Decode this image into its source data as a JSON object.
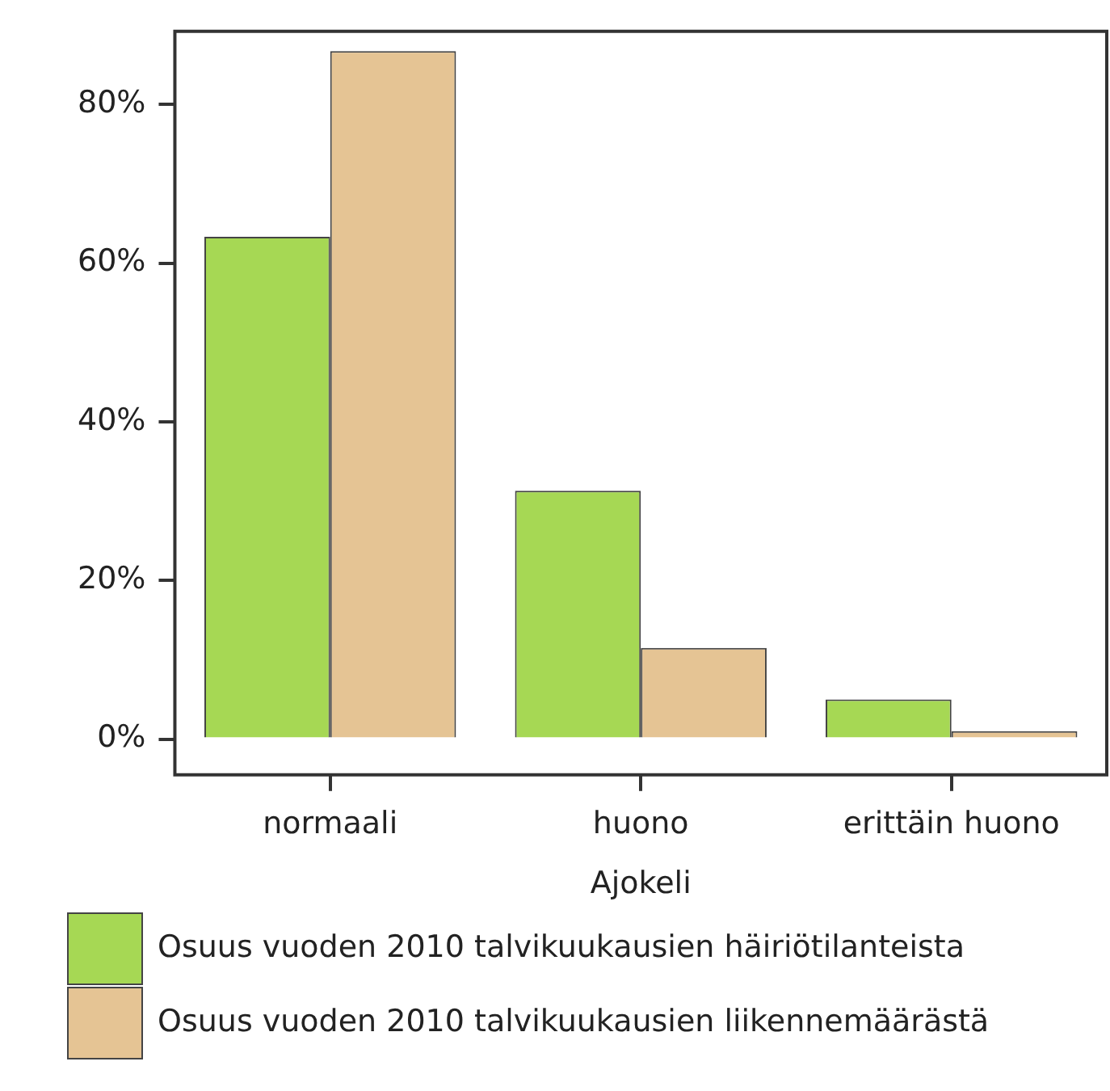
{
  "chart_data": {
    "type": "bar",
    "xlabel": "Ajokeli",
    "categories": [
      "normaali",
      "huono",
      "erittäin huono"
    ],
    "series": [
      {
        "name": "Osuus vuoden 2010 talvikuukausien häiriötilanteista",
        "color": "#a6d854",
        "values": [
          63.3,
          31.3,
          5.0
        ]
      },
      {
        "name": "Osuus vuoden 2010 talvikuukausien liikennemäärästä",
        "color": "#e5c494",
        "values": [
          86.7,
          11.5,
          1.0
        ]
      }
    ],
    "ylim": [
      -4.5,
      89.2
    ],
    "yticks": [
      {
        "value": 0,
        "label": "0%"
      },
      {
        "value": 20,
        "label": "20%"
      },
      {
        "value": 40,
        "label": "40%"
      },
      {
        "value": 60,
        "label": "60%"
      },
      {
        "value": 80,
        "label": "80%"
      }
    ],
    "grid": false,
    "legend": "bottom"
  }
}
